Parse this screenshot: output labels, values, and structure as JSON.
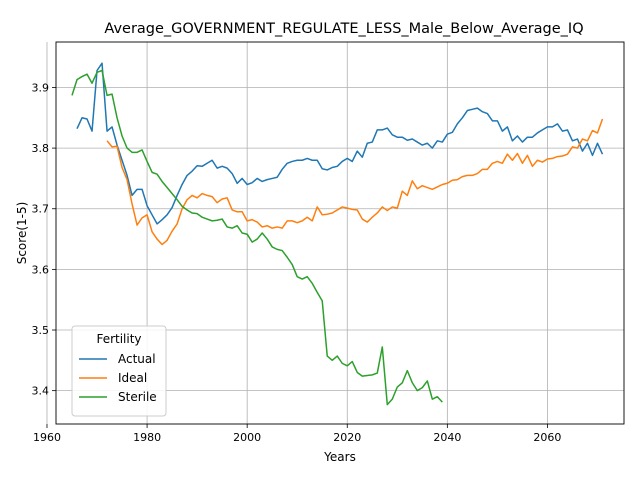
{
  "chart_data": {
    "type": "line",
    "title": "Average_GOVERNMENT_REGULATE_LESS_Male_Below_Average_IQ",
    "xlabel": "Years",
    "ylabel": "Score(1-5)",
    "xlim": [
      1961.8,
      2075.3
    ],
    "ylim": [
      3.345,
      3.975
    ],
    "xticks": [
      1960,
      1980,
      2000,
      2020,
      2040,
      2060
    ],
    "yticks": [
      3.4,
      3.5,
      3.6,
      3.7,
      3.8,
      3.9
    ],
    "grid": true,
    "legend": {
      "title": "Fertility",
      "position": "lower-left"
    },
    "series": [
      {
        "name": "Actual",
        "color": "#1f77b4",
        "points": [
          [
            1966,
            3.832
          ],
          [
            1967,
            3.85
          ],
          [
            1968,
            3.848
          ],
          [
            1969,
            3.828
          ],
          [
            1970,
            3.928
          ],
          [
            1971,
            3.94
          ],
          [
            1972,
            3.828
          ],
          [
            1973,
            3.835
          ],
          [
            1974,
            3.805
          ],
          [
            1975,
            3.78
          ],
          [
            1976,
            3.755
          ],
          [
            1977,
            3.722
          ],
          [
            1978,
            3.732
          ],
          [
            1979,
            3.732
          ],
          [
            1980,
            3.705
          ],
          [
            1981,
            3.69
          ],
          [
            1982,
            3.675
          ],
          [
            1983,
            3.682
          ],
          [
            1984,
            3.69
          ],
          [
            1985,
            3.702
          ],
          [
            1986,
            3.722
          ],
          [
            1987,
            3.74
          ],
          [
            1988,
            3.755
          ],
          [
            1989,
            3.762
          ],
          [
            1990,
            3.771
          ],
          [
            1991,
            3.77
          ],
          [
            1992,
            3.775
          ],
          [
            1993,
            3.78
          ],
          [
            1994,
            3.767
          ],
          [
            1995,
            3.77
          ],
          [
            1996,
            3.767
          ],
          [
            1997,
            3.758
          ],
          [
            1998,
            3.742
          ],
          [
            1999,
            3.75
          ],
          [
            2000,
            3.74
          ],
          [
            2001,
            3.743
          ],
          [
            2002,
            3.75
          ],
          [
            2003,
            3.745
          ],
          [
            2004,
            3.748
          ],
          [
            2005,
            3.75
          ],
          [
            2006,
            3.752
          ],
          [
            2007,
            3.765
          ],
          [
            2008,
            3.775
          ],
          [
            2009,
            3.778
          ],
          [
            2010,
            3.78
          ],
          [
            2011,
            3.78
          ],
          [
            2012,
            3.783
          ],
          [
            2013,
            3.78
          ],
          [
            2014,
            3.78
          ],
          [
            2015,
            3.766
          ],
          [
            2016,
            3.764
          ],
          [
            2017,
            3.768
          ],
          [
            2018,
            3.77
          ],
          [
            2019,
            3.778
          ],
          [
            2020,
            3.783
          ],
          [
            2021,
            3.778
          ],
          [
            2022,
            3.795
          ],
          [
            2023,
            3.785
          ],
          [
            2024,
            3.808
          ],
          [
            2025,
            3.81
          ],
          [
            2026,
            3.83
          ],
          [
            2027,
            3.83
          ],
          [
            2028,
            3.833
          ],
          [
            2029,
            3.822
          ],
          [
            2030,
            3.818
          ],
          [
            2031,
            3.818
          ],
          [
            2032,
            3.813
          ],
          [
            2033,
            3.815
          ],
          [
            2034,
            3.81
          ],
          [
            2035,
            3.805
          ],
          [
            2036,
            3.808
          ],
          [
            2037,
            3.8
          ],
          [
            2038,
            3.812
          ],
          [
            2039,
            3.81
          ],
          [
            2040,
            3.823
          ],
          [
            2041,
            3.826
          ],
          [
            2042,
            3.84
          ],
          [
            2043,
            3.85
          ],
          [
            2044,
            3.862
          ],
          [
            2045,
            3.864
          ],
          [
            2046,
            3.866
          ],
          [
            2047,
            3.86
          ],
          [
            2048,
            3.857
          ],
          [
            2049,
            3.845
          ],
          [
            2050,
            3.845
          ],
          [
            2051,
            3.828
          ],
          [
            2052,
            3.835
          ],
          [
            2053,
            3.812
          ],
          [
            2054,
            3.82
          ],
          [
            2055,
            3.81
          ],
          [
            2056,
            3.818
          ],
          [
            2057,
            3.818
          ],
          [
            2058,
            3.825
          ],
          [
            2059,
            3.83
          ],
          [
            2060,
            3.835
          ],
          [
            2061,
            3.835
          ],
          [
            2062,
            3.84
          ],
          [
            2063,
            3.828
          ],
          [
            2064,
            3.83
          ],
          [
            2065,
            3.812
          ],
          [
            2066,
            3.815
          ],
          [
            2067,
            3.795
          ],
          [
            2068,
            3.808
          ],
          [
            2069,
            3.788
          ],
          [
            2070,
            3.808
          ],
          [
            2071,
            3.79
          ]
        ]
      },
      {
        "name": "Ideal",
        "color": "#ff7f0e",
        "points": [
          [
            1972,
            3.812
          ],
          [
            1973,
            3.802
          ],
          [
            1974,
            3.803
          ],
          [
            1975,
            3.768
          ],
          [
            1976,
            3.748
          ],
          [
            1977,
            3.708
          ],
          [
            1978,
            3.673
          ],
          [
            1979,
            3.685
          ],
          [
            1980,
            3.69
          ],
          [
            1981,
            3.662
          ],
          [
            1982,
            3.65
          ],
          [
            1983,
            3.641
          ],
          [
            1984,
            3.648
          ],
          [
            1985,
            3.663
          ],
          [
            1986,
            3.675
          ],
          [
            1987,
            3.7
          ],
          [
            1988,
            3.715
          ],
          [
            1989,
            3.722
          ],
          [
            1990,
            3.718
          ],
          [
            1991,
            3.725
          ],
          [
            1992,
            3.722
          ],
          [
            1993,
            3.72
          ],
          [
            1994,
            3.71
          ],
          [
            1995,
            3.716
          ],
          [
            1996,
            3.718
          ],
          [
            1997,
            3.698
          ],
          [
            1998,
            3.695
          ],
          [
            1999,
            3.695
          ],
          [
            2000,
            3.68
          ],
          [
            2001,
            3.682
          ],
          [
            2002,
            3.678
          ],
          [
            2003,
            3.67
          ],
          [
            2004,
            3.672
          ],
          [
            2005,
            3.668
          ],
          [
            2006,
            3.67
          ],
          [
            2007,
            3.668
          ],
          [
            2008,
            3.68
          ],
          [
            2009,
            3.68
          ],
          [
            2010,
            3.677
          ],
          [
            2011,
            3.68
          ],
          [
            2012,
            3.686
          ],
          [
            2013,
            3.68
          ],
          [
            2014,
            3.703
          ],
          [
            2015,
            3.69
          ],
          [
            2016,
            3.691
          ],
          [
            2017,
            3.693
          ],
          [
            2018,
            3.698
          ],
          [
            2019,
            3.703
          ],
          [
            2020,
            3.701
          ],
          [
            2021,
            3.699
          ],
          [
            2022,
            3.698
          ],
          [
            2023,
            3.683
          ],
          [
            2024,
            3.678
          ],
          [
            2025,
            3.686
          ],
          [
            2026,
            3.693
          ],
          [
            2027,
            3.703
          ],
          [
            2028,
            3.697
          ],
          [
            2029,
            3.703
          ],
          [
            2030,
            3.701
          ],
          [
            2031,
            3.729
          ],
          [
            2032,
            3.722
          ],
          [
            2033,
            3.746
          ],
          [
            2034,
            3.733
          ],
          [
            2035,
            3.738
          ],
          [
            2036,
            3.735
          ],
          [
            2037,
            3.732
          ],
          [
            2038,
            3.736
          ],
          [
            2039,
            3.74
          ],
          [
            2040,
            3.742
          ],
          [
            2041,
            3.747
          ],
          [
            2042,
            3.748
          ],
          [
            2043,
            3.753
          ],
          [
            2044,
            3.755
          ],
          [
            2045,
            3.755
          ],
          [
            2046,
            3.758
          ],
          [
            2047,
            3.765
          ],
          [
            2048,
            3.765
          ],
          [
            2049,
            3.775
          ],
          [
            2050,
            3.778
          ],
          [
            2051,
            3.775
          ],
          [
            2052,
            3.79
          ],
          [
            2053,
            3.78
          ],
          [
            2054,
            3.791
          ],
          [
            2055,
            3.775
          ],
          [
            2056,
            3.788
          ],
          [
            2057,
            3.77
          ],
          [
            2058,
            3.78
          ],
          [
            2059,
            3.777
          ],
          [
            2060,
            3.782
          ],
          [
            2061,
            3.783
          ],
          [
            2062,
            3.786
          ],
          [
            2063,
            3.787
          ],
          [
            2064,
            3.79
          ],
          [
            2065,
            3.802
          ],
          [
            2066,
            3.8
          ],
          [
            2067,
            3.815
          ],
          [
            2068,
            3.812
          ],
          [
            2069,
            3.829
          ],
          [
            2070,
            3.825
          ],
          [
            2071,
            3.848
          ]
        ]
      },
      {
        "name": "Sterile",
        "color": "#2ca02c",
        "points": [
          [
            1965,
            3.887
          ],
          [
            1966,
            3.913
          ],
          [
            1967,
            3.918
          ],
          [
            1968,
            3.922
          ],
          [
            1969,
            3.907
          ],
          [
            1970,
            3.925
          ],
          [
            1971,
            3.928
          ],
          [
            1972,
            3.887
          ],
          [
            1973,
            3.889
          ],
          [
            1974,
            3.85
          ],
          [
            1975,
            3.82
          ],
          [
            1976,
            3.8
          ],
          [
            1977,
            3.793
          ],
          [
            1978,
            3.793
          ],
          [
            1979,
            3.797
          ],
          [
            1980,
            3.778
          ],
          [
            1981,
            3.76
          ],
          [
            1982,
            3.757
          ],
          [
            1983,
            3.745
          ],
          [
            1984,
            3.735
          ],
          [
            1985,
            3.725
          ],
          [
            1986,
            3.715
          ],
          [
            1987,
            3.704
          ],
          [
            1988,
            3.698
          ],
          [
            1989,
            3.693
          ],
          [
            1990,
            3.692
          ],
          [
            1991,
            3.686
          ],
          [
            1992,
            3.683
          ],
          [
            1993,
            3.68
          ],
          [
            1994,
            3.681
          ],
          [
            1995,
            3.683
          ],
          [
            1996,
            3.67
          ],
          [
            1997,
            3.668
          ],
          [
            1998,
            3.672
          ],
          [
            1999,
            3.66
          ],
          [
            2000,
            3.658
          ],
          [
            2001,
            3.645
          ],
          [
            2002,
            3.65
          ],
          [
            2003,
            3.66
          ],
          [
            2004,
            3.65
          ],
          [
            2005,
            3.637
          ],
          [
            2006,
            3.633
          ],
          [
            2007,
            3.631
          ],
          [
            2008,
            3.62
          ],
          [
            2009,
            3.608
          ],
          [
            2010,
            3.588
          ],
          [
            2011,
            3.584
          ],
          [
            2012,
            3.588
          ],
          [
            2013,
            3.577
          ],
          [
            2014,
            3.562
          ],
          [
            2015,
            3.548
          ],
          [
            2016,
            3.457
          ],
          [
            2017,
            3.45
          ],
          [
            2018,
            3.457
          ],
          [
            2019,
            3.445
          ],
          [
            2020,
            3.441
          ],
          [
            2021,
            3.448
          ],
          [
            2022,
            3.43
          ],
          [
            2023,
            3.424
          ],
          [
            2024,
            3.425
          ],
          [
            2025,
            3.426
          ],
          [
            2026,
            3.429
          ],
          [
            2027,
            3.472
          ],
          [
            2028,
            3.377
          ],
          [
            2029,
            3.386
          ],
          [
            2030,
            3.406
          ],
          [
            2031,
            3.413
          ],
          [
            2032,
            3.433
          ],
          [
            2033,
            3.413
          ],
          [
            2034,
            3.4
          ],
          [
            2035,
            3.405
          ],
          [
            2036,
            3.416
          ],
          [
            2037,
            3.386
          ],
          [
            2038,
            3.39
          ],
          [
            2039,
            3.381
          ]
        ]
      }
    ]
  }
}
